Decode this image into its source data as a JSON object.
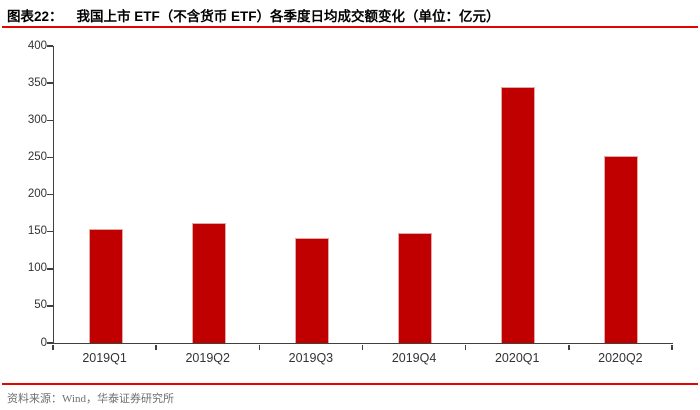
{
  "header": {
    "figure_label": "图表22：",
    "title": "我国上市 ETF（不含货币 ETF）各季度日均成交额变化（单位：亿元）"
  },
  "footer": {
    "source_label": "资料来源：",
    "source_text": "Wind，华泰证券研究所"
  },
  "colors": {
    "bar_fill": "#c00000",
    "bar_border": "#e2a9a7",
    "rule_red": "#e10600",
    "axis": "#404040",
    "tick_label": "#333333",
    "source_text": "#6f6f6f"
  },
  "chart_data": {
    "type": "bar",
    "title": "我国上市ETF（不含货币ETF）各季度日均成交额变化",
    "unit": "亿元",
    "categories": [
      "2019Q1",
      "2019Q2",
      "2019Q3",
      "2019Q4",
      "2020Q1",
      "2020Q2"
    ],
    "values": [
      153,
      162,
      142,
      148,
      345,
      252
    ],
    "xlabel": "",
    "ylabel": "",
    "ylim": [
      0,
      400
    ],
    "ytick_step": 50,
    "grid": false,
    "legend": "none",
    "bar_color": "#c00000"
  }
}
